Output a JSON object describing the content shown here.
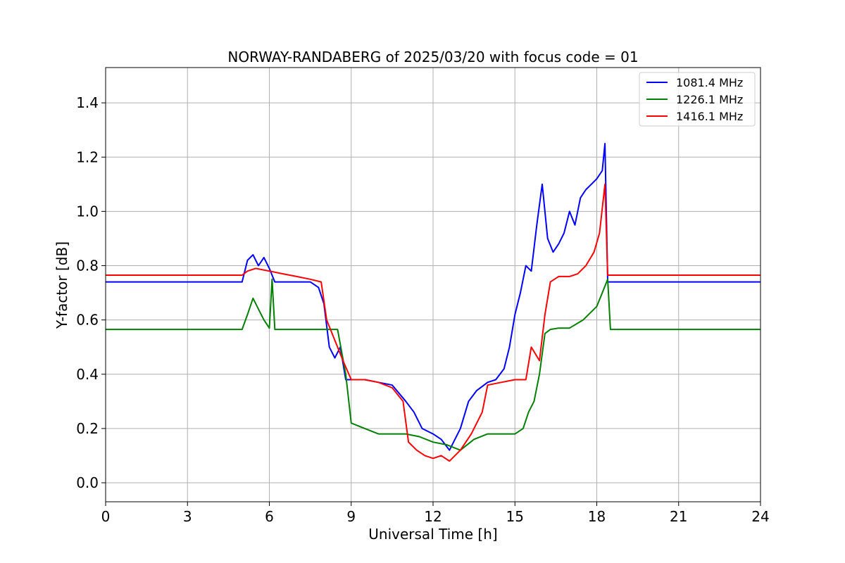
{
  "chart_data": {
    "type": "line",
    "title": "NORWAY-RANDABERG of 2025/03/20 with focus code = 01",
    "xlabel": "Universal Time [h]",
    "ylabel": "Y-factor [dB]",
    "xlim": [
      0,
      24
    ],
    "ylim": [
      -0.07,
      1.53
    ],
    "xticks": [
      0,
      3,
      6,
      9,
      12,
      15,
      18,
      21,
      24
    ],
    "xtick_labels": [
      "0",
      "3",
      "6",
      "9",
      "12",
      "15",
      "18",
      "21",
      "24"
    ],
    "yticks": [
      0.0,
      0.2,
      0.4,
      0.6,
      0.8,
      1.0,
      1.2,
      1.4
    ],
    "ytick_labels": [
      "0.0",
      "0.2",
      "0.4",
      "0.6",
      "0.8",
      "1.0",
      "1.2",
      "1.4"
    ],
    "grid": true,
    "legend_position": "top-right",
    "series": [
      {
        "name": "1081.4 MHz",
        "color": "#0000ff",
        "x": [
          0,
          1,
          2,
          3,
          4,
          5.0,
          5.2,
          5.4,
          5.6,
          5.8,
          6.0,
          6.2,
          6.5,
          7.0,
          7.5,
          7.8,
          8.0,
          8.2,
          8.4,
          8.6,
          8.8,
          9.0,
          9.5,
          10.0,
          10.5,
          11.0,
          11.3,
          11.6,
          12.0,
          12.3,
          12.6,
          13.0,
          13.3,
          13.6,
          14.0,
          14.3,
          14.6,
          14.8,
          15.0,
          15.2,
          15.4,
          15.6,
          15.8,
          16.0,
          16.2,
          16.4,
          16.6,
          16.8,
          17.0,
          17.2,
          17.4,
          17.6,
          17.8,
          18.0,
          18.2,
          18.3,
          18.4,
          18.6,
          19,
          20,
          21,
          22,
          23,
          24
        ],
        "y": [
          0.74,
          0.74,
          0.74,
          0.74,
          0.74,
          0.74,
          0.82,
          0.84,
          0.8,
          0.83,
          0.79,
          0.74,
          0.74,
          0.74,
          0.74,
          0.72,
          0.66,
          0.5,
          0.46,
          0.5,
          0.38,
          0.38,
          0.38,
          0.37,
          0.36,
          0.3,
          0.26,
          0.2,
          0.18,
          0.16,
          0.12,
          0.2,
          0.3,
          0.34,
          0.37,
          0.38,
          0.42,
          0.5,
          0.62,
          0.7,
          0.8,
          0.78,
          0.95,
          1.1,
          0.9,
          0.85,
          0.88,
          0.92,
          1.0,
          0.95,
          1.05,
          1.08,
          1.1,
          1.12,
          1.15,
          1.25,
          0.74,
          0.74,
          0.74,
          0.74,
          0.74,
          0.74,
          0.74,
          0.74
        ]
      },
      {
        "name": "1226.1 MHz",
        "color": "#008000",
        "x": [
          0,
          1,
          2,
          3,
          4,
          5.0,
          5.2,
          5.4,
          5.6,
          5.8,
          6.0,
          6.1,
          6.2,
          6.5,
          7.0,
          7.5,
          8.0,
          8.5,
          8.8,
          9.0,
          9.5,
          10.0,
          10.5,
          11.0,
          11.5,
          12.0,
          12.5,
          13.0,
          13.5,
          14.0,
          14.5,
          15.0,
          15.3,
          15.5,
          15.7,
          15.9,
          16.1,
          16.3,
          16.6,
          17.0,
          17.5,
          18.0,
          18.2,
          18.4,
          18.5,
          18.7,
          19,
          20,
          21,
          22,
          23,
          24
        ],
        "y": [
          0.565,
          0.565,
          0.565,
          0.565,
          0.565,
          0.565,
          0.62,
          0.68,
          0.64,
          0.6,
          0.57,
          0.75,
          0.565,
          0.565,
          0.565,
          0.565,
          0.565,
          0.565,
          0.4,
          0.22,
          0.2,
          0.18,
          0.18,
          0.18,
          0.17,
          0.15,
          0.14,
          0.12,
          0.16,
          0.18,
          0.18,
          0.18,
          0.2,
          0.26,
          0.3,
          0.4,
          0.55,
          0.565,
          0.57,
          0.57,
          0.6,
          0.65,
          0.7,
          0.75,
          0.565,
          0.565,
          0.565,
          0.565,
          0.565,
          0.565,
          0.565,
          0.565
        ]
      },
      {
        "name": "1416.1 MHz",
        "color": "#ff0000",
        "x": [
          0,
          1,
          2,
          3,
          4,
          5.0,
          5.2,
          5.5,
          6.0,
          6.5,
          7.0,
          7.5,
          7.9,
          8.1,
          8.3,
          8.5,
          8.7,
          9.0,
          9.5,
          10.0,
          10.5,
          10.9,
          11.1,
          11.4,
          11.7,
          12.0,
          12.3,
          12.6,
          13.0,
          13.4,
          13.8,
          14.0,
          14.5,
          15.0,
          15.4,
          15.6,
          15.9,
          16.1,
          16.3,
          16.6,
          17.0,
          17.3,
          17.6,
          17.9,
          18.1,
          18.3,
          18.4,
          18.6,
          19,
          20,
          21,
          22,
          23,
          24
        ],
        "y": [
          0.765,
          0.765,
          0.765,
          0.765,
          0.765,
          0.765,
          0.78,
          0.79,
          0.78,
          0.77,
          0.76,
          0.75,
          0.74,
          0.6,
          0.55,
          0.5,
          0.45,
          0.38,
          0.38,
          0.37,
          0.35,
          0.3,
          0.15,
          0.12,
          0.1,
          0.09,
          0.1,
          0.08,
          0.12,
          0.18,
          0.26,
          0.36,
          0.37,
          0.38,
          0.38,
          0.5,
          0.45,
          0.62,
          0.74,
          0.76,
          0.76,
          0.77,
          0.8,
          0.85,
          0.92,
          1.1,
          0.765,
          0.765,
          0.765,
          0.765,
          0.765,
          0.765,
          0.765,
          0.765
        ]
      }
    ]
  }
}
